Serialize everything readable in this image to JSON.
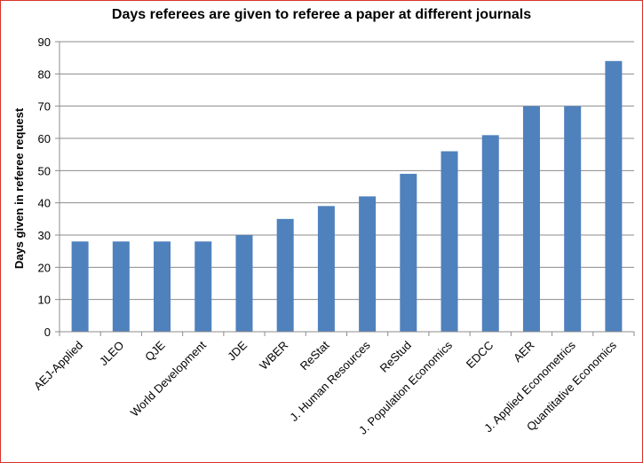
{
  "chart_data": {
    "type": "bar",
    "title": "Days referees are given to referee a paper at different journals",
    "xlabel": "",
    "ylabel": "Days given in referee request",
    "ylim": [
      0,
      90
    ],
    "yticks": [
      0,
      10,
      20,
      30,
      40,
      50,
      60,
      70,
      80,
      90
    ],
    "grid": true,
    "bar_color": "#4f81bd",
    "categories": [
      "AEJ-Applied",
      "JLEO",
      "QJE",
      "World Development",
      "JDE",
      "WBER",
      "ReStat",
      "J. Human Resources",
      "ReStud",
      "J. Population Economics",
      "EDCC",
      "AER",
      "J. Applied Econometrics",
      "Quantitative Economics"
    ],
    "values": [
      28,
      28,
      28,
      28,
      30,
      35,
      39,
      42,
      49,
      56,
      61,
      70,
      70,
      84
    ]
  }
}
